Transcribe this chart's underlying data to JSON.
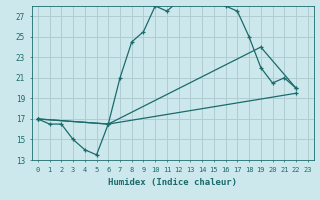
{
  "title": "",
  "xlabel": "Humidex (Indice chaleur)",
  "background_color": "#cde8ec",
  "grid_color": "#b0cdd2",
  "line_color": "#1a6b6b",
  "xlim": [
    -0.5,
    23.5
  ],
  "ylim": [
    13,
    28
  ],
  "yticks": [
    13,
    15,
    17,
    19,
    21,
    23,
    25,
    27
  ],
  "xticks": [
    0,
    1,
    2,
    3,
    4,
    5,
    6,
    7,
    8,
    9,
    10,
    11,
    12,
    13,
    14,
    15,
    16,
    17,
    18,
    19,
    20,
    21,
    22,
    23
  ],
  "line1_x": [
    0,
    1,
    2,
    3,
    4,
    5,
    6,
    7,
    8,
    9,
    10,
    11,
    12,
    13,
    14,
    15,
    16,
    17,
    18,
    19,
    20,
    21,
    22
  ],
  "line1_y": [
    17.0,
    16.5,
    16.5,
    15.0,
    14.0,
    13.5,
    16.5,
    21.0,
    24.5,
    25.5,
    28.0,
    27.5,
    28.5,
    28.5,
    28.5,
    28.5,
    28.0,
    27.5,
    25.0,
    22.0,
    20.5,
    21.0,
    20.0
  ],
  "line2_x": [
    0,
    6,
    19,
    22
  ],
  "line2_y": [
    17.0,
    16.5,
    24.0,
    20.0
  ],
  "line3_x": [
    0,
    6,
    22
  ],
  "line3_y": [
    17.0,
    16.5,
    19.5
  ]
}
